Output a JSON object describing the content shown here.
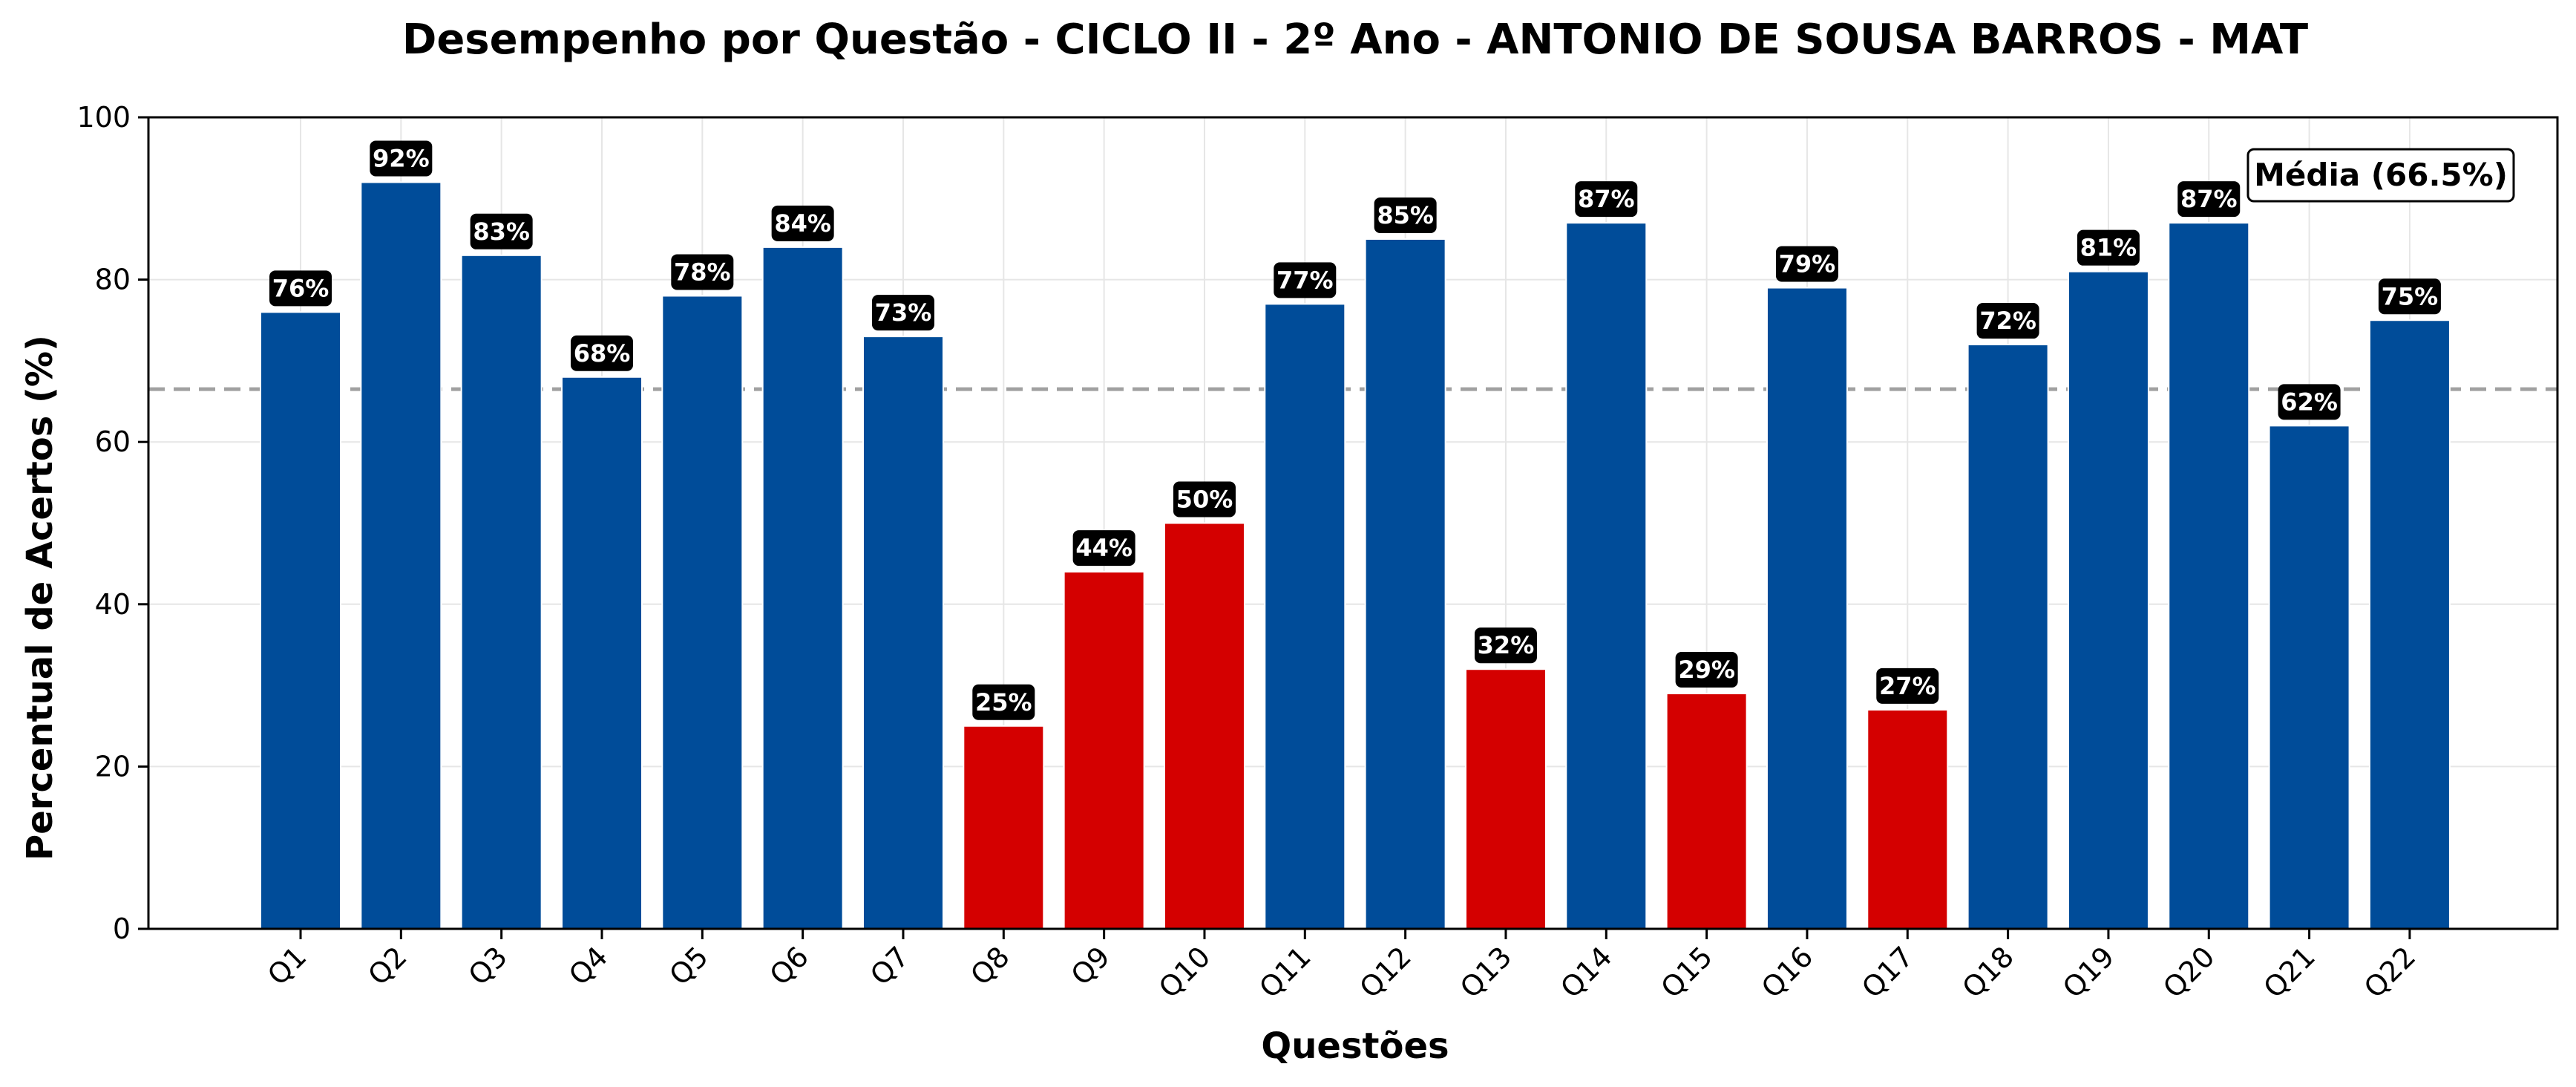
{
  "chart_data": {
    "type": "bar",
    "title": "Desempenho por Questão - CICLO II - 2º Ano - ANTONIO DE SOUSA BARROS - MAT",
    "xlabel": "Questões",
    "ylabel": "Percentual de Acertos (%)",
    "ylim": [
      0,
      100
    ],
    "yticks": [
      0,
      20,
      40,
      60,
      80,
      100
    ],
    "grid": true,
    "categories": [
      "Q1",
      "Q2",
      "Q3",
      "Q4",
      "Q5",
      "Q6",
      "Q7",
      "Q8",
      "Q9",
      "Q10",
      "Q11",
      "Q12",
      "Q13",
      "Q14",
      "Q15",
      "Q16",
      "Q17",
      "Q18",
      "Q19",
      "Q20",
      "Q21",
      "Q22"
    ],
    "values": [
      76,
      92,
      83,
      68,
      78,
      84,
      73,
      25,
      44,
      50,
      77,
      85,
      32,
      87,
      29,
      79,
      27,
      72,
      81,
      87,
      62,
      75
    ],
    "data_labels": [
      "76%",
      "92%",
      "83%",
      "68%",
      "78%",
      "84%",
      "73%",
      "25%",
      "44%",
      "50%",
      "77%",
      "85%",
      "32%",
      "87%",
      "29%",
      "79%",
      "27%",
      "72%",
      "81%",
      "87%",
      "62%",
      "75%"
    ],
    "mean": 66.5,
    "mean_label": "Média (66.5%)",
    "legend_position": "top-right",
    "colors": {
      "above_threshold": "#004C99",
      "below_threshold": "#D40000",
      "mean_line": "#A0A0A0",
      "label_bg": "#000000",
      "grid": "#E6E6E6"
    },
    "low_threshold": 50
  }
}
